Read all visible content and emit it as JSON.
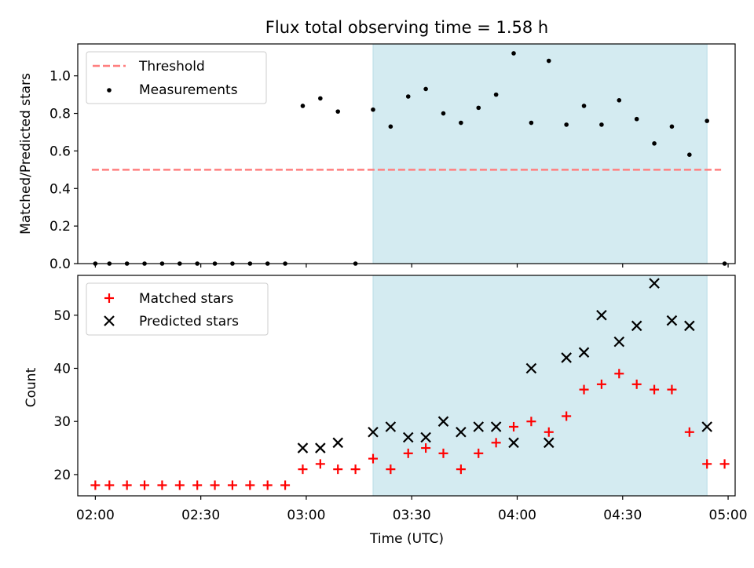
{
  "title": "Flux total observing time = 1.58 h",
  "chart_data": [
    {
      "type": "scatter",
      "ylabel": "Matched/Predicted stars",
      "ylim": [
        0,
        1.17
      ],
      "xlim": [
        "01:55",
        "05:02"
      ],
      "yticks": [
        "0.0",
        "0.2",
        "0.4",
        "0.6",
        "0.8",
        "1.0"
      ],
      "yticks_values": [
        0,
        0.2,
        0.4,
        0.6,
        0.8,
        1.0
      ],
      "shaded_span": [
        "03:19",
        "04:54"
      ],
      "shaded_color": "#d4ebf1",
      "threshold": {
        "name": "Threshold",
        "value": 0.5,
        "x_start": "01:59",
        "x_end": "04:58",
        "color": "#ff7f7f"
      },
      "series": [
        {
          "name": "Measurements",
          "color": "#000000",
          "x": [
            "02:00",
            "02:04",
            "02:09",
            "02:14",
            "02:19",
            "02:24",
            "02:29",
            "02:34",
            "02:39",
            "02:44",
            "02:49",
            "02:54",
            "02:59",
            "03:04",
            "03:09",
            "03:14",
            "03:19",
            "03:24",
            "03:29",
            "03:34",
            "03:39",
            "03:44",
            "03:49",
            "03:54",
            "03:59",
            "04:04",
            "04:09",
            "04:14",
            "04:19",
            "04:24",
            "04:29",
            "04:34",
            "04:39",
            "04:44",
            "04:49",
            "04:54",
            "04:59"
          ],
          "y": [
            0,
            0,
            0,
            0,
            0,
            0,
            0,
            0,
            0,
            0,
            0,
            0,
            0.84,
            0.88,
            0.81,
            0,
            0.82,
            0.73,
            0.89,
            0.93,
            0.8,
            0.75,
            0.83,
            0.9,
            1.12,
            0.75,
            1.08,
            0.74,
            0.84,
            0.74,
            0.87,
            0.77,
            0.64,
            0.73,
            0.58,
            0.76,
            0
          ]
        }
      ]
    },
    {
      "type": "scatter",
      "xlabel": "Time (UTC)",
      "ylabel": "Count",
      "ylim": [
        16,
        57.5
      ],
      "xlim": [
        "01:55",
        "05:02"
      ],
      "xticks": [
        "02:00",
        "02:30",
        "03:00",
        "03:30",
        "04:00",
        "04:30",
        "05:00"
      ],
      "yticks": [
        "20",
        "30",
        "40",
        "50"
      ],
      "yticks_values": [
        20,
        30,
        40,
        50
      ],
      "shaded_span": [
        "03:19",
        "04:54"
      ],
      "shaded_color": "#d4ebf1",
      "series": [
        {
          "name": "Matched stars",
          "color": "#ff0000",
          "marker": "plus",
          "x": [
            "02:00",
            "02:04",
            "02:09",
            "02:14",
            "02:19",
            "02:24",
            "02:29",
            "02:34",
            "02:39",
            "02:44",
            "02:49",
            "02:54",
            "02:59",
            "03:04",
            "03:09",
            "03:14",
            "03:19",
            "03:24",
            "03:29",
            "03:34",
            "03:39",
            "03:44",
            "03:49",
            "03:54",
            "03:59",
            "04:04",
            "04:09",
            "04:14",
            "04:19",
            "04:24",
            "04:29",
            "04:34",
            "04:39",
            "04:44",
            "04:49",
            "04:54",
            "04:59"
          ],
          "y": [
            18,
            18,
            18,
            18,
            18,
            18,
            18,
            18,
            18,
            18,
            18,
            18,
            21,
            22,
            21,
            21,
            23,
            21,
            24,
            25,
            24,
            21,
            24,
            26,
            29,
            30,
            28,
            31,
            36,
            37,
            39,
            37,
            36,
            36,
            28,
            22,
            22
          ]
        },
        {
          "name": "Predicted stars",
          "color": "#000000",
          "marker": "x",
          "x": [
            "02:59",
            "03:04",
            "03:09",
            "03:19",
            "03:24",
            "03:29",
            "03:34",
            "03:39",
            "03:44",
            "03:49",
            "03:54",
            "03:59",
            "04:04",
            "04:09",
            "04:14",
            "04:19",
            "04:24",
            "04:29",
            "04:34",
            "04:39",
            "04:44",
            "04:49",
            "04:54"
          ],
          "y": [
            25,
            25,
            26,
            28,
            29,
            27,
            27,
            30,
            28,
            29,
            29,
            26,
            40,
            26,
            42,
            43,
            50,
            45,
            48,
            56,
            49,
            48,
            29
          ]
        }
      ]
    }
  ]
}
